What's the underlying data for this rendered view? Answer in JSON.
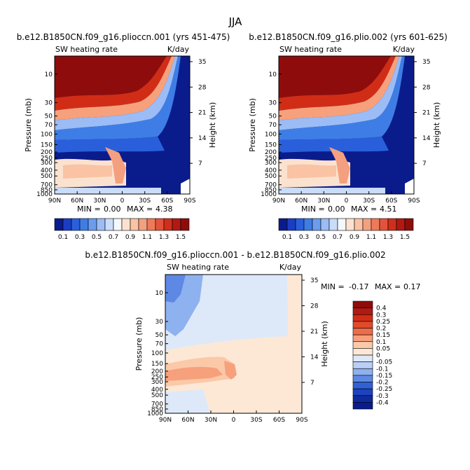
{
  "figure": {
    "title": "JJA"
  },
  "panels": [
    {
      "id": "left",
      "title": "b.e12.B1850CN.f09_g16.plioccn.001 (yrs 451-475)",
      "left_label": "SW heating rate",
      "right_label": "K/day",
      "stats": {
        "min_label": "MIN =",
        "min": "0.00",
        "max_label": "MAX =",
        "max": "4.38"
      }
    },
    {
      "id": "right",
      "title": "b.e12.B1850CN.f09_g16.plio.002 (yrs 601-625)",
      "left_label": "SW heating rate",
      "right_label": "K/day",
      "stats": {
        "min_label": "MIN =",
        "min": "0.00",
        "max_label": "MAX =",
        "max": "4.51"
      }
    },
    {
      "id": "diff",
      "title": "b.e12.B1850CN.f09_g16.plioccn.001 - b.e12.B1850CN.f09_g16.plio.002",
      "left_label": "SW heating rate",
      "right_label": "K/day",
      "stats": {
        "min_label": "MIN =",
        "min": "-0.17",
        "max_label": "MAX =",
        "max": "0.17"
      }
    }
  ],
  "chart_data": {
    "type": "heatmap",
    "ylabel": "Pressure (mb)",
    "y2label": "Height (km)",
    "x_ticks": [
      "90N",
      "60N",
      "30N",
      "0",
      "30S",
      "60S",
      "90S"
    ],
    "pressure_ticks": [
      "10",
      "30",
      "50",
      "70",
      "100",
      "150",
      "200",
      "250",
      "300",
      "400",
      "500",
      "700",
      "850",
      "1000"
    ],
    "height_ticks": [
      "35",
      "28",
      "21",
      "14",
      "7"
    ],
    "colorbar_top": {
      "labels": [
        "0.1",
        "0.3",
        "0.5",
        "0.7",
        "0.9",
        "1.1",
        "1.3",
        "1.5"
      ],
      "colors": [
        "#0a1c8c",
        "#1b3dc4",
        "#2a5fdb",
        "#3f7de6",
        "#6b9cee",
        "#9bbcf5",
        "#c9dcf9",
        "#f4f7fb",
        "#fbe2cf",
        "#f9c3a4",
        "#f4a080",
        "#ee7a5a",
        "#e2533a",
        "#cf2f1c",
        "#b11912",
        "#8e0d0c"
      ]
    },
    "colorbar_diff": {
      "labels": [
        "0.4",
        "0.3",
        "0.25",
        "0.2",
        "0.15",
        "0.1",
        "0.05",
        "0",
        "-0.05",
        "-0.1",
        "-0.15",
        "-0.2",
        "-0.25",
        "-0.3",
        "-0.4"
      ],
      "colors": [
        "#8e0d0c",
        "#b11912",
        "#d12d16",
        "#e24a2a",
        "#ee6c48",
        "#f7a07c",
        "#fbc9a8",
        "#fde8d6",
        "#dde9f9",
        "#b9cff5",
        "#8eb1ef",
        "#5d88e4",
        "#3161d4",
        "#1d43bf",
        "#0e2a9c",
        "#0a1c8c"
      ]
    }
  }
}
